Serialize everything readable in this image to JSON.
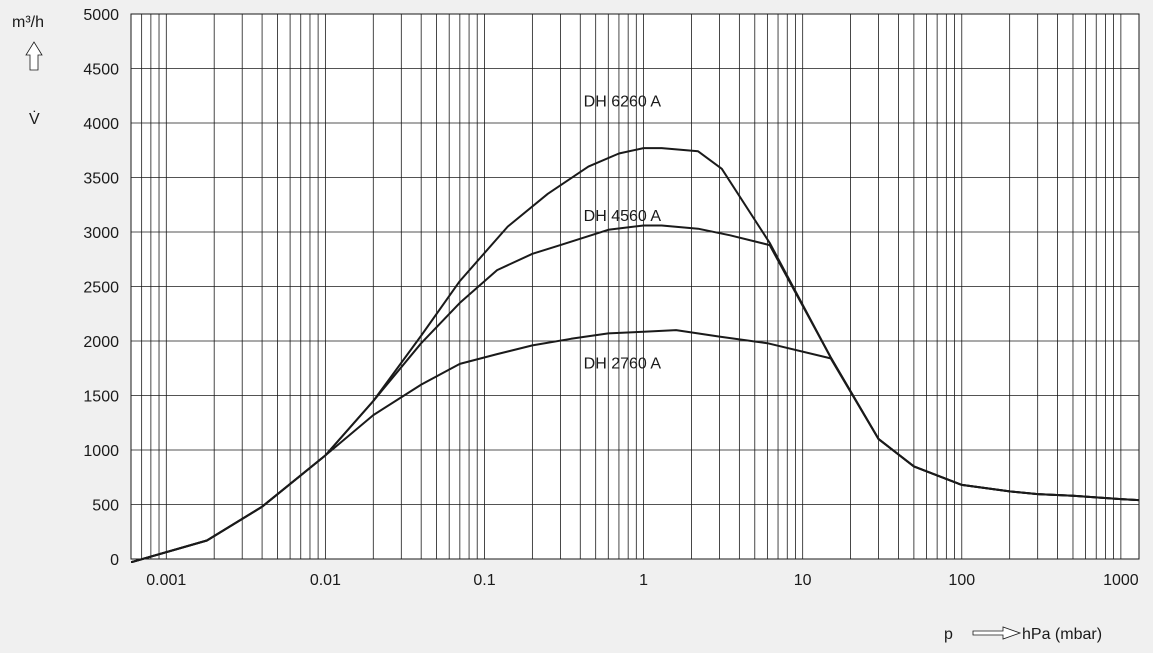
{
  "chart_data": {
    "type": "line",
    "x_scale": "log",
    "xlim": [
      0.0006,
      1300
    ],
    "ylim": [
      0,
      5000
    ],
    "grid": true,
    "x_ticks": [
      {
        "value": 0.001,
        "label": "0.001"
      },
      {
        "value": 0.01,
        "label": "0.01"
      },
      {
        "value": 0.1,
        "label": "0.1"
      },
      {
        "value": 1,
        "label": "1"
      },
      {
        "value": 10,
        "label": "10"
      },
      {
        "value": 100,
        "label": "100"
      },
      {
        "value": 1000,
        "label": "1000"
      }
    ],
    "y_ticks": [
      {
        "value": 0,
        "label": "0"
      },
      {
        "value": 500,
        "label": "500"
      },
      {
        "value": 1000,
        "label": "1000"
      },
      {
        "value": 1500,
        "label": "1500"
      },
      {
        "value": 2000,
        "label": "2000"
      },
      {
        "value": 2500,
        "label": "2500"
      },
      {
        "value": 3000,
        "label": "3000"
      },
      {
        "value": 3500,
        "label": "3500"
      },
      {
        "value": 4000,
        "label": "4000"
      },
      {
        "value": 4500,
        "label": "4500"
      },
      {
        "value": 5000,
        "label": "5000"
      }
    ],
    "y_unit": "m³/h",
    "y_symbol": "V̇",
    "x_symbol": "p",
    "x_unit": "hPa (mbar)",
    "series": [
      {
        "name": "DH 6260 A",
        "label_at": {
          "x": 0.42,
          "y": 4150
        },
        "x": [
          0.0006,
          0.0018,
          0.004,
          0.01,
          0.02,
          0.04,
          0.07,
          0.14,
          0.25,
          0.45,
          0.7,
          1.0,
          1.3,
          2.2,
          3.1,
          6.2,
          15,
          30,
          50,
          100,
          200,
          300,
          500,
          1000,
          1300
        ],
        "y": [
          -30,
          170,
          480,
          950,
          1450,
          2050,
          2550,
          3050,
          3350,
          3600,
          3720,
          3770,
          3770,
          3740,
          3580,
          2900,
          1850,
          1100,
          850,
          680,
          620,
          595,
          580,
          550,
          540
        ]
      },
      {
        "name": "DH 4560 A",
        "label_at": {
          "x": 0.42,
          "y": 3100
        },
        "x": [
          0.0006,
          0.0018,
          0.004,
          0.01,
          0.02,
          0.04,
          0.07,
          0.12,
          0.2,
          0.3,
          0.6,
          1.0,
          1.3,
          2.2,
          3.5,
          6.2,
          15,
          30,
          50,
          100,
          200,
          300,
          500,
          1000,
          1300
        ],
        "y": [
          -30,
          170,
          480,
          950,
          1450,
          1980,
          2350,
          2650,
          2800,
          2880,
          3020,
          3060,
          3060,
          3030,
          2970,
          2880,
          1850,
          1100,
          850,
          680,
          620,
          595,
          580,
          550,
          540
        ]
      },
      {
        "name": "DH 2760 A",
        "label_at": {
          "x": 0.42,
          "y": 1750
        },
        "x": [
          0.0006,
          0.0018,
          0.004,
          0.01,
          0.02,
          0.04,
          0.07,
          0.12,
          0.2,
          0.35,
          0.6,
          1.0,
          1.6,
          3.0,
          6.0,
          15,
          30,
          50,
          100,
          200,
          300,
          500,
          1000,
          1300
        ],
        "y": [
          -30,
          170,
          480,
          950,
          1320,
          1600,
          1790,
          1880,
          1960,
          2020,
          2070,
          2085,
          2100,
          2040,
          1980,
          1840,
          1100,
          850,
          680,
          620,
          595,
          580,
          550,
          540
        ]
      }
    ]
  }
}
